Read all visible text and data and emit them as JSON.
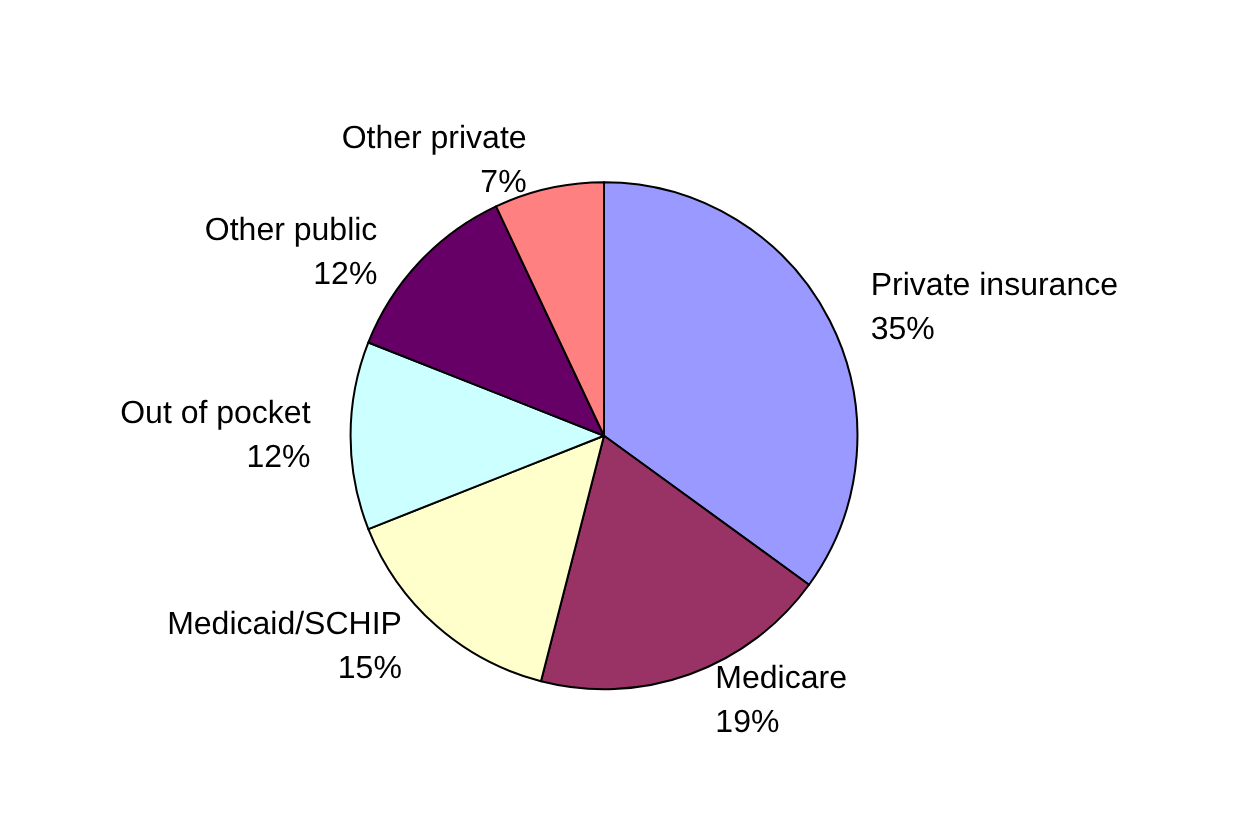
{
  "chart_data": {
    "type": "pie",
    "categories": [
      "Private insurance",
      "Medicare",
      "Medicaid/SCHIP",
      "Out of pocket",
      "Other public",
      "Other private"
    ],
    "values": [
      35,
      19,
      15,
      12,
      12,
      7
    ],
    "value_labels": [
      "35%",
      "19%",
      "15%",
      "12%",
      "12%",
      "7%"
    ],
    "colors": [
      "#9999ff",
      "#993366",
      "#ffffcc",
      "#ccffff",
      "#660066",
      "#ff8080"
    ],
    "legend": false
  }
}
